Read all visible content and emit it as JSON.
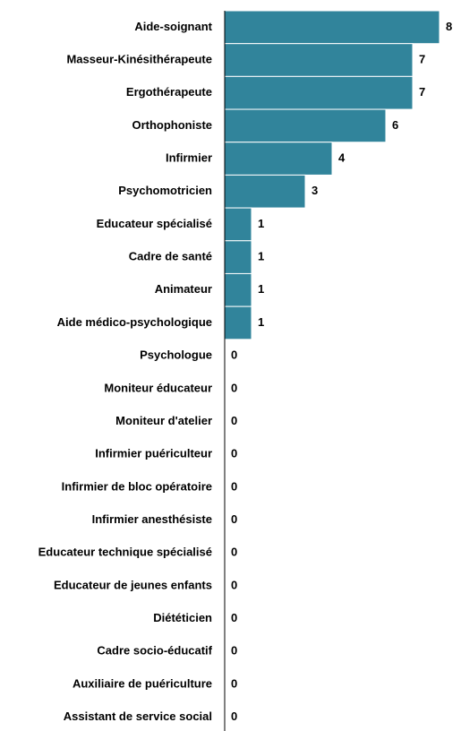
{
  "chart_data": {
    "type": "barh",
    "color": "#31849b",
    "categories": [
      "Aide-soignant",
      "Masseur-Kinésithérapeute",
      "Ergothérapeute",
      "Orthophoniste",
      "Infirmier",
      "Psychomotricien",
      "Educateur spécialisé",
      "Cadre de santé",
      "Animateur",
      "Aide médico-psychologique",
      "Psychologue",
      "Moniteur éducateur",
      "Moniteur d'atelier",
      "Infirmier puériculteur",
      "Infirmier de bloc opératoire",
      "Infirmier anesthésiste",
      "Educateur technique spécialisé",
      "Educateur de jeunes enfants",
      "Diététicien",
      "Cadre socio-éducatif",
      "Auxiliaire de puériculture",
      "Assistant de service social"
    ],
    "values": [
      8,
      7,
      7,
      6,
      4,
      3,
      1,
      1,
      1,
      1,
      0,
      0,
      0,
      0,
      0,
      0,
      0,
      0,
      0,
      0,
      0,
      0
    ]
  }
}
